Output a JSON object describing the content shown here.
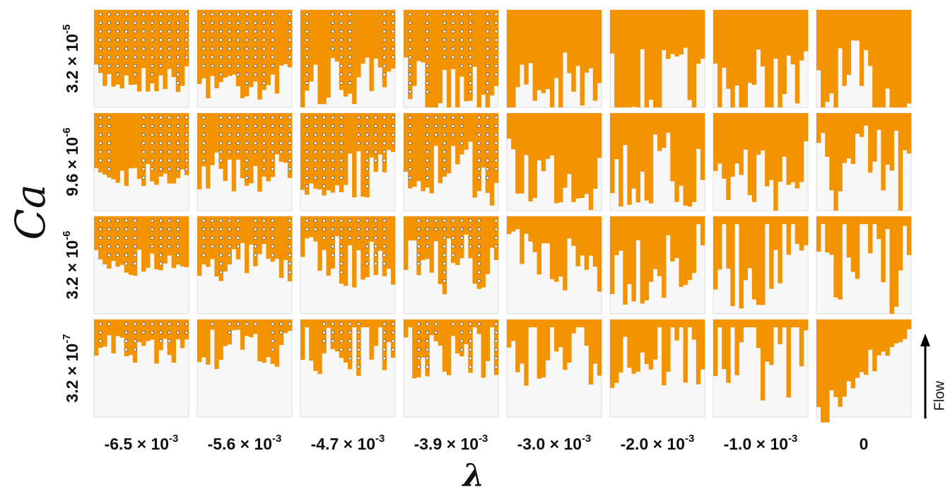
{
  "figure": {
    "y_label": "Ca",
    "x_label": "λ",
    "flow_label": "Flow",
    "rows": [
      {
        "base": "3.2 × 10",
        "exponent": "-5"
      },
      {
        "base": "9.6 × 10",
        "exponent": "-6"
      },
      {
        "base": "3.2 × 10",
        "exponent": "-6"
      },
      {
        "base": "3.2 × 10",
        "exponent": "-7"
      }
    ],
    "columns": [
      {
        "base": "-6.5 × 10",
        "exponent": "-3"
      },
      {
        "base": "-5.6 × 10",
        "exponent": "-3"
      },
      {
        "base": "-4.7 × 10",
        "exponent": "-3"
      },
      {
        "base": "-3.9 × 10",
        "exponent": "-3"
      },
      {
        "base": "-3.0 × 10",
        "exponent": "-3"
      },
      {
        "base": "-2.0 × 10",
        "exponent": "-3"
      },
      {
        "base": "-1.0 × 10",
        "exponent": "-3"
      },
      {
        "base": "0"
      }
    ]
  }
}
